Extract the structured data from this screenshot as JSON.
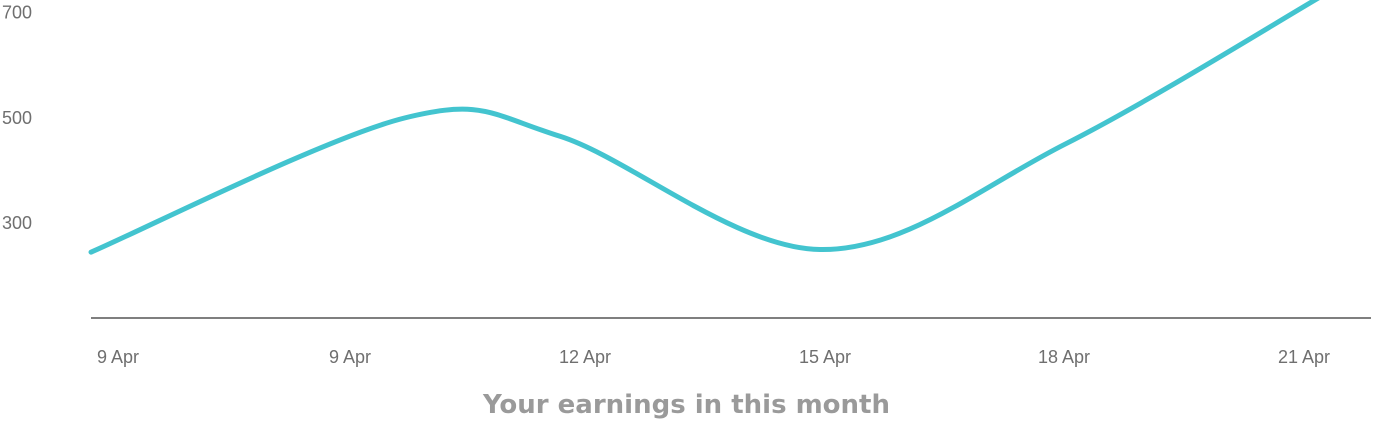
{
  "chart_data": {
    "type": "line",
    "title": "",
    "xlabel": "Your earnings in this month",
    "ylabel": "",
    "categories": [
      "9 Apr",
      "9 Apr",
      "12 Apr",
      "15 Apr",
      "18 Apr",
      "21 Apr"
    ],
    "series": [
      {
        "values": [
          245,
          500,
          465,
          250,
          450,
          735
        ]
      }
    ],
    "y_ticks": [
      "300",
      "500",
      "700"
    ],
    "y_tick_values": [
      300,
      500,
      700
    ],
    "ylim": [
      120,
      720
    ],
    "grid": false,
    "line_color": "#43c4cf",
    "axis_color": "#555555"
  }
}
